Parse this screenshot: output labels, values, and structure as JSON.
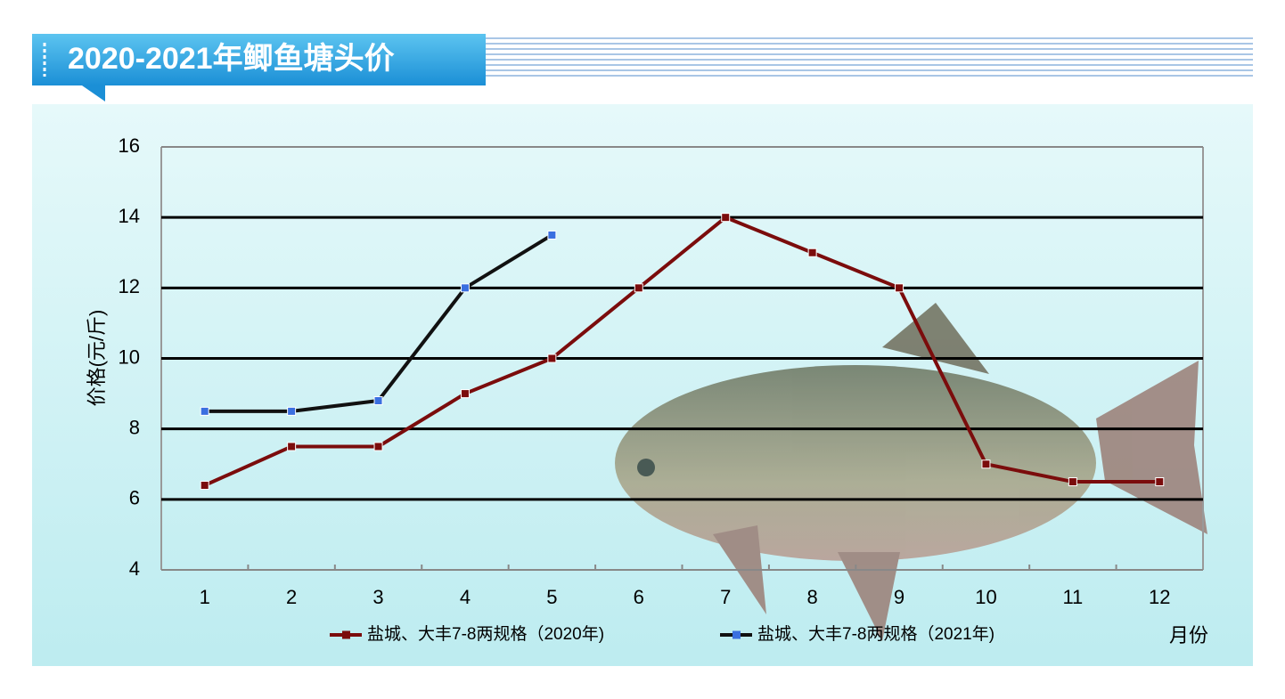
{
  "chart_data": {
    "type": "line",
    "title": "2020-2021年鲫鱼塘头价",
    "y_label": "价格(元/斤)",
    "x_label": "月份",
    "categories": [
      "1",
      "2",
      "3",
      "4",
      "5",
      "6",
      "7",
      "8",
      "9",
      "10",
      "11",
      "12"
    ],
    "series": [
      {
        "name": "盐城、大丰7-8两规格（2020年)",
        "color": "#7b0c0c",
        "marker_color": "#7b0c0c",
        "values": [
          6.4,
          7.5,
          7.5,
          9,
          10,
          12,
          14,
          13,
          12,
          7,
          6.5,
          6.5
        ]
      },
      {
        "name": "盐城、大丰7-8两规格（2021年)",
        "color": "#111111",
        "marker_color": "#3a6fe0",
        "values": [
          8.5,
          8.5,
          8.8,
          12,
          13.5,
          null,
          null,
          null,
          null,
          null,
          null,
          null
        ]
      }
    ],
    "ylim": [
      4,
      16
    ],
    "yticks": [
      4,
      6,
      8,
      10,
      12,
      14,
      16
    ],
    "grid": true
  }
}
